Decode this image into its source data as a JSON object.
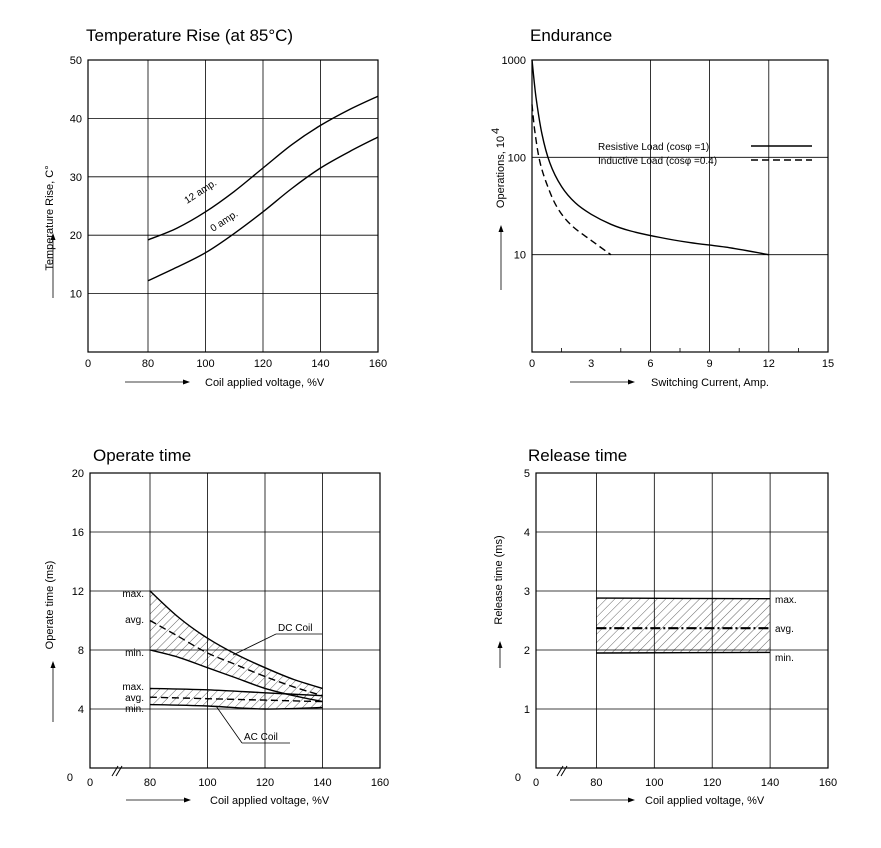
{
  "chart_data": [
    {
      "type": "line",
      "title": "Temperature Rise (at 85°C)",
      "xlabel": "Coil applied voltage, %V",
      "ylabel": "Temperature Rise, C°",
      "xlim": [
        0,
        160
      ],
      "ylim": [
        0,
        50
      ],
      "x_ticks": [
        "0",
        "80",
        "100",
        "120",
        "140",
        "160"
      ],
      "y_ticks": [
        "10",
        "20",
        "30",
        "40",
        "50"
      ],
      "series": [
        {
          "name": "12 amp.",
          "x": [
            80,
            90,
            100,
            110,
            120,
            130,
            140,
            150,
            160
          ],
          "y": [
            19.2,
            21.2,
            24.0,
            27.5,
            31.5,
            35.5,
            38.8,
            41.5,
            43.8
          ]
        },
        {
          "name": "0 amp.",
          "x": [
            80,
            90,
            100,
            110,
            120,
            130,
            140,
            150,
            160
          ],
          "y": [
            12.2,
            14.5,
            17.0,
            20.3,
            24.0,
            28.0,
            31.5,
            34.3,
            36.8
          ]
        }
      ]
    },
    {
      "type": "line",
      "title": "Endurance",
      "xlabel": "Switching Current, Amp.",
      "ylabel": "Operations, 10",
      "ylabel_exponent": "4",
      "yscale": "log",
      "xlim": [
        0,
        15
      ],
      "ylim": [
        1,
        1000
      ],
      "x_ticks": [
        "0",
        "3",
        "6",
        "9",
        "12",
        "15"
      ],
      "y_ticks": [
        "10",
        "100",
        "1000"
      ],
      "legend": [
        "Resistive Load (cosφ =1)",
        "Inductive Load (cosφ =0.4)"
      ],
      "series": [
        {
          "name": "Resistive Load (cosφ =1)",
          "x": [
            0,
            0.2,
            0.5,
            0.9,
            1.5,
            2.2,
            3,
            4,
            5,
            6.5,
            8,
            10,
            12
          ],
          "y": [
            1000,
            420,
            175,
            88,
            50,
            34,
            26,
            20.5,
            17.5,
            15,
            13.3,
            11.8,
            10
          ]
        },
        {
          "name": "Inductive Load (cosφ =0.4)",
          "x": [
            0,
            0.15,
            0.4,
            0.8,
            1.3,
            2,
            3,
            4
          ],
          "y": [
            350,
            180,
            90,
            50,
            30,
            20,
            14,
            10
          ]
        }
      ]
    },
    {
      "type": "area",
      "title": "Operate time",
      "xlabel": "Coil applied voltage, %V",
      "ylabel": "Operate time (ms)",
      "xlim": [
        0,
        160
      ],
      "ylim": [
        0,
        20
      ],
      "x_ticks": [
        "0",
        "80",
        "100",
        "120",
        "140",
        "160"
      ],
      "y_ticks": [
        "4",
        "8",
        "12",
        "16",
        "20"
      ],
      "dc_label": "DC Coil",
      "ac_label": "AC Coil",
      "level_labels": [
        "max.",
        "avg.",
        "min.",
        "max.",
        "avg.",
        "min."
      ],
      "series": [
        {
          "name": "DC max.",
          "x": [
            80,
            90,
            100,
            110,
            120,
            130,
            140
          ],
          "y": [
            12.0,
            10.2,
            8.8,
            7.7,
            6.8,
            6.0,
            5.4
          ]
        },
        {
          "name": "DC avg.",
          "x": [
            80,
            90,
            100,
            110,
            120,
            130,
            140
          ],
          "y": [
            10.0,
            8.9,
            7.8,
            7.0,
            6.2,
            5.5,
            4.9
          ]
        },
        {
          "name": "DC min.",
          "x": [
            80,
            90,
            100,
            110,
            120,
            130,
            140
          ],
          "y": [
            8.0,
            7.5,
            6.8,
            6.1,
            5.4,
            4.9,
            4.5
          ]
        },
        {
          "name": "AC max.",
          "x": [
            80,
            100,
            120,
            140
          ],
          "y": [
            5.4,
            5.3,
            5.1,
            4.9
          ]
        },
        {
          "name": "AC avg.",
          "x": [
            80,
            100,
            120,
            140
          ],
          "y": [
            4.8,
            4.7,
            4.6,
            4.5
          ]
        },
        {
          "name": "AC min.",
          "x": [
            80,
            100,
            120,
            140
          ],
          "y": [
            4.3,
            4.2,
            4.0,
            4.1
          ]
        }
      ]
    },
    {
      "type": "area",
      "title": "Release time",
      "xlabel": "Coil applied voltage, %V",
      "ylabel": "Release time (ms)",
      "xlim": [
        0,
        160
      ],
      "ylim": [
        0,
        5
      ],
      "x_ticks": [
        "0",
        "80",
        "100",
        "120",
        "140",
        "160"
      ],
      "y_ticks": [
        "1",
        "2",
        "3",
        "4",
        "5"
      ],
      "level_labels": [
        "max.",
        "avg.",
        "min."
      ],
      "series": [
        {
          "name": "max.",
          "x": [
            80,
            140
          ],
          "y": [
            2.88,
            2.87
          ]
        },
        {
          "name": "avg.",
          "x": [
            80,
            140
          ],
          "y": [
            2.37,
            2.37
          ]
        },
        {
          "name": "min.",
          "x": [
            80,
            140
          ],
          "y": [
            1.95,
            1.96
          ]
        }
      ]
    }
  ]
}
